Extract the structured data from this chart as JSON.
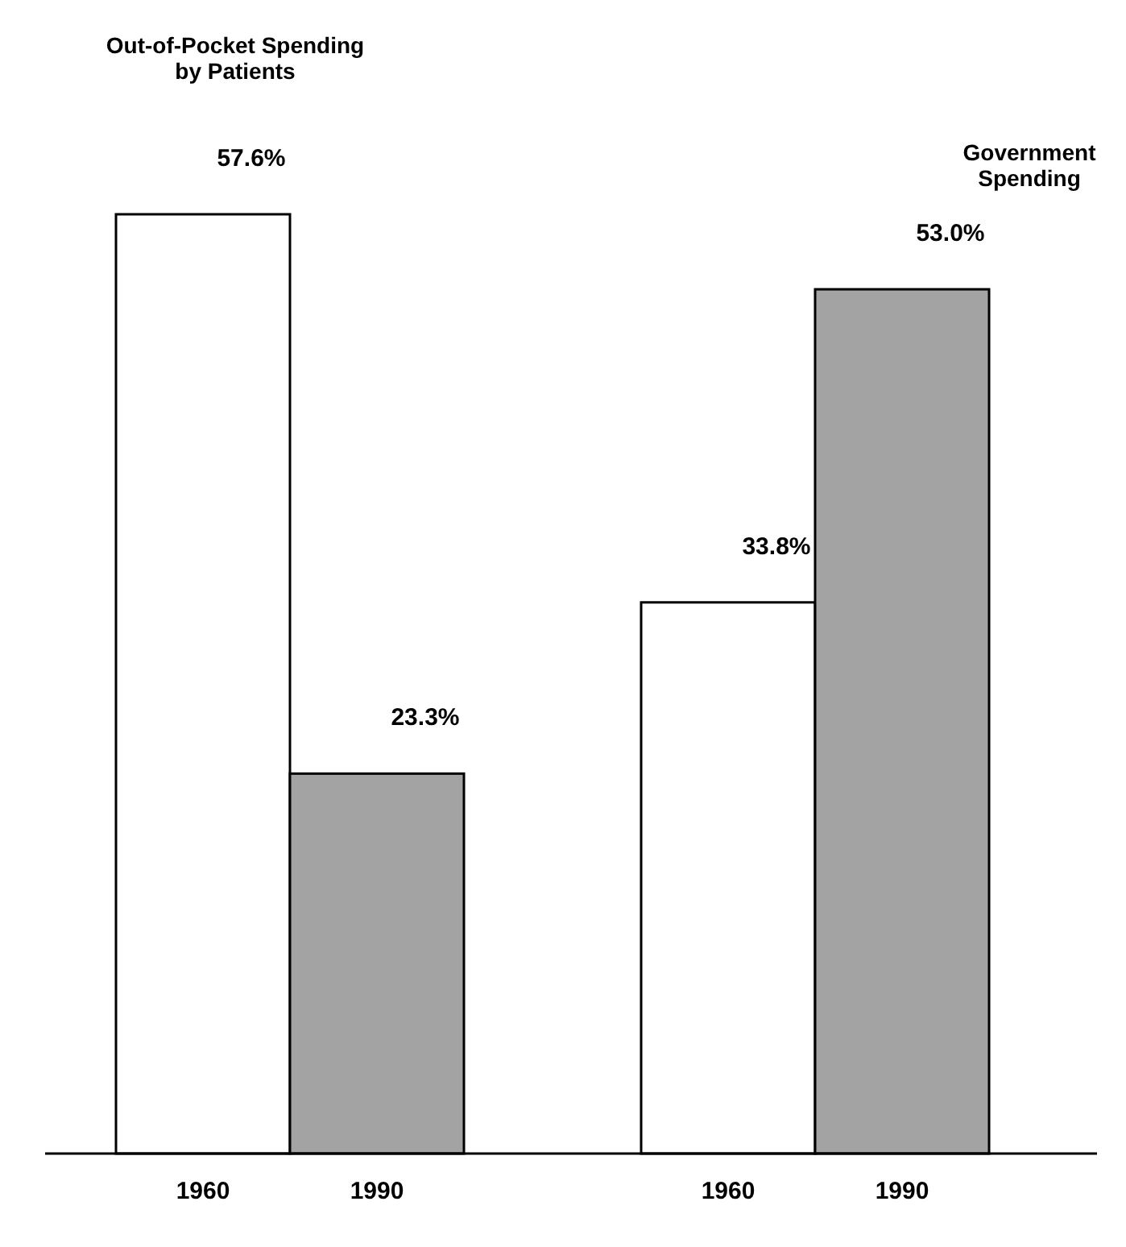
{
  "chart_data": {
    "type": "bar",
    "categories": [
      "1960",
      "1990",
      "1960",
      "1990"
    ],
    "values": [
      57.6,
      23.3,
      33.8,
      53.0
    ],
    "value_labels": [
      "57.6%",
      "23.3%",
      "33.8%",
      "53.0%"
    ],
    "colors": [
      "#ffffff",
      "#a3a3a3",
      "#ffffff",
      "#a3a3a3"
    ],
    "annotations": [
      "Out-of-Pocket Spending\nby Patients",
      "Government\nSpending"
    ]
  }
}
